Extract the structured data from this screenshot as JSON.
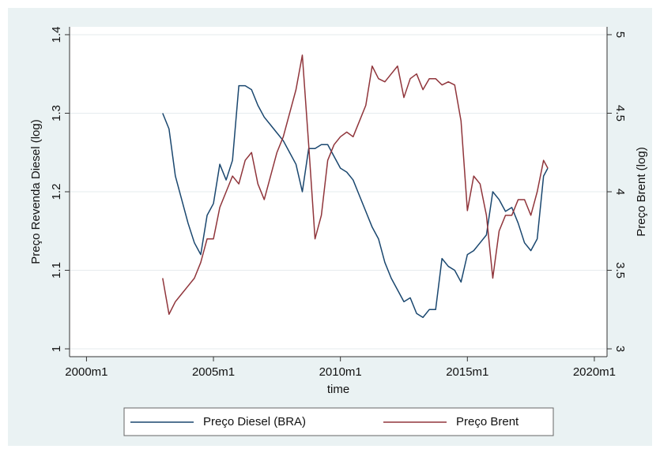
{
  "chart_data": {
    "type": "line",
    "xlabel": "time",
    "ylabel": "Preço Revenda Diesel (log)",
    "y2label": "Preço Brent (log)",
    "x": [
      516,
      519,
      522,
      525,
      528,
      531,
      534,
      537,
      540,
      543,
      546,
      549,
      552,
      555,
      558,
      561,
      564,
      567,
      570,
      573,
      576,
      579,
      582,
      585,
      588,
      591,
      594,
      597,
      600,
      603,
      606,
      609,
      612,
      615,
      618,
      621,
      624,
      627,
      630,
      633,
      636,
      639,
      642,
      645,
      648,
      651,
      654,
      657,
      660,
      663,
      666,
      669,
      672,
      675,
      678,
      681,
      684,
      687,
      690,
      693,
      696,
      698
    ],
    "xlim": [
      472,
      726
    ],
    "xticks": [
      {
        "value": 480,
        "label": "2000m1"
      },
      {
        "value": 540,
        "label": "2005m1"
      },
      {
        "value": 600,
        "label": "2010m1"
      },
      {
        "value": 660,
        "label": "2015m1"
      },
      {
        "value": 720,
        "label": "2020m1"
      }
    ],
    "ylim": [
      0.99,
      1.41
    ],
    "yticks": [
      1,
      1.1,
      1.2,
      1.3,
      1.4
    ],
    "y2lim": [
      2.95,
      5.05
    ],
    "y2ticks": [
      3,
      3.5,
      4,
      4.5,
      5
    ],
    "grid": true,
    "legend": "bottom",
    "series": [
      {
        "name": "Preço Diesel (BRA)",
        "color": "#1a476f",
        "values": [
          1.3,
          1.28,
          1.22,
          1.19,
          1.16,
          1.135,
          1.12,
          1.17,
          1.185,
          1.235,
          1.215,
          1.24,
          1.335,
          1.335,
          1.33,
          1.31,
          1.295,
          1.285,
          1.275,
          1.265,
          1.25,
          1.235,
          1.2,
          1.255,
          1.255,
          1.26,
          1.26,
          1.245,
          1.23,
          1.225,
          1.215,
          1.195,
          1.175,
          1.155,
          1.14,
          1.11,
          1.09,
          1.075,
          1.06,
          1.065,
          1.045,
          1.04,
          1.05,
          1.05,
          1.115,
          1.105,
          1.1,
          1.085,
          1.12,
          1.125,
          1.135,
          1.145,
          1.2,
          1.19,
          1.175,
          1.18,
          1.16,
          1.135,
          1.125,
          1.14,
          1.22,
          1.23
        ]
      },
      {
        "name": "Preço Brent",
        "color": "#90353b",
        "axis": "y2",
        "values": [
          3.45,
          3.22,
          3.3,
          3.35,
          3.4,
          3.45,
          3.55,
          3.7,
          3.7,
          3.9,
          4.0,
          4.1,
          4.05,
          4.2,
          4.25,
          4.05,
          3.95,
          4.1,
          4.25,
          4.35,
          4.5,
          4.65,
          4.87,
          4.3,
          3.7,
          3.85,
          4.2,
          4.3,
          4.35,
          4.38,
          4.35,
          4.45,
          4.55,
          4.8,
          4.72,
          4.7,
          4.75,
          4.8,
          4.6,
          4.72,
          4.75,
          4.65,
          4.72,
          4.72,
          4.68,
          4.7,
          4.68,
          4.45,
          3.88,
          4.1,
          4.05,
          3.85,
          3.45,
          3.75,
          3.85,
          3.85,
          3.95,
          3.95,
          3.85,
          4.0,
          4.2,
          4.15
        ]
      }
    ]
  }
}
